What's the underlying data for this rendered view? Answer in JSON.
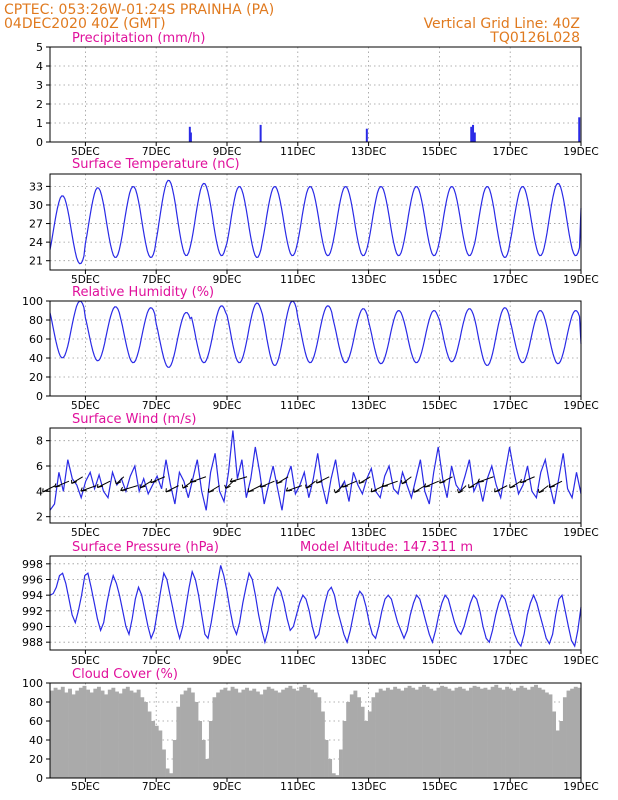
{
  "header": {
    "line1_left": "CPTEC:   053:26W-01:24S   PRAINHA (PA)",
    "line2_left": "04DEC2020 40Z (GMT)",
    "line1_right": "Vertical Grid Line: 40Z",
    "line2_right": "TQ0126L028"
  },
  "colors": {
    "title": "#e0119c",
    "header": "#e07a1f",
    "series": "#2a2ae6",
    "cloud": "#aaaaaa"
  },
  "x_ticks": [
    "5DEC",
    "7DEC",
    "9DEC",
    "11DEC",
    "13DEC",
    "15DEC",
    "17DEC",
    "19DEC"
  ],
  "chart_data": [
    {
      "type": "bar",
      "title": "Precipitation (mm/h)",
      "ylim": [
        0,
        5
      ],
      "yticks": [
        0,
        1,
        2,
        3,
        4,
        5
      ],
      "x_range_days": [
        4.0,
        19.0
      ],
      "points": [
        [
          7.95,
          0.8
        ],
        [
          7.98,
          0.5
        ],
        [
          9.95,
          0.9
        ],
        [
          12.95,
          0.7
        ],
        [
          15.9,
          0.8
        ],
        [
          15.95,
          0.9
        ],
        [
          16.0,
          0.5
        ],
        [
          18.95,
          1.3
        ]
      ]
    },
    {
      "type": "line",
      "title": "Surface Temperature (nC)",
      "ylim": [
        19.5,
        35
      ],
      "yticks": [
        21,
        24,
        27,
        30,
        33
      ],
      "x_range_days": [
        4.0,
        19.0
      ],
      "daily_min": [
        20.5,
        21.5,
        21.5,
        21.8,
        21.8,
        21.5,
        21.8,
        21.8,
        21.8,
        21.8,
        21.8,
        21.8,
        21.5,
        21.8,
        21.8
      ],
      "daily_max": [
        31.5,
        32.8,
        33.0,
        34.0,
        33.5,
        33.0,
        33.0,
        33.0,
        33.0,
        33.0,
        33.0,
        33.0,
        33.0,
        33.0,
        33.5
      ],
      "last": 29.5
    },
    {
      "type": "line",
      "title": "Relative Humidity (%)",
      "ylim": [
        0,
        100
      ],
      "yticks": [
        0,
        20,
        40,
        60,
        80,
        100
      ],
      "x_range_days": [
        4.0,
        19.0
      ],
      "daily_max": [
        100,
        94,
        93,
        88,
        95,
        98,
        100,
        95,
        92,
        90,
        90,
        92,
        93,
        90,
        90
      ],
      "daily_min": [
        40,
        37,
        35,
        30,
        35,
        35,
        32,
        35,
        35,
        34,
        35,
        36,
        32,
        35,
        34
      ],
      "last": 55
    },
    {
      "type": "line",
      "title": "Surface Wind (m/s)",
      "ylim": [
        1.5,
        9.0
      ],
      "yticks": [
        2,
        4,
        6,
        8
      ],
      "x_range_days": [
        4.0,
        19.0
      ],
      "values": [
        2.5,
        3.0,
        5.5,
        4.0,
        6.5,
        5.0,
        4.5,
        3.5,
        4.8,
        5.5,
        4.2,
        5.3,
        4.0,
        3.5,
        5.5,
        4.5,
        5.0,
        4.0,
        5.2,
        6.0,
        4.0,
        5.0,
        3.8,
        4.5,
        5.2,
        4.2,
        6.5,
        4.5,
        3.0,
        5.5,
        4.8,
        3.5,
        5.0,
        6.5,
        4.0,
        2.5,
        5.5,
        7.0,
        4.0,
        3.2,
        5.5,
        8.8,
        5.0,
        6.5,
        3.5,
        5.0,
        7.5,
        5.5,
        3.0,
        4.5,
        6.0,
        4.2,
        2.5,
        5.0,
        6.0,
        3.8,
        4.5,
        5.5,
        3.5,
        5.0,
        7.0,
        4.5,
        3.0,
        5.0,
        6.5,
        4.2,
        4.8,
        3.2,
        5.5,
        4.5,
        3.8,
        5.0,
        5.8,
        4.0,
        3.5,
        5.2,
        6.0,
        4.2,
        3.8,
        5.5,
        4.5,
        3.5,
        5.0,
        6.5,
        4.0,
        3.0,
        5.5,
        7.5,
        5.0,
        3.5,
        6.0,
        4.5,
        4.0,
        5.2,
        6.5,
        4.0,
        4.8,
        3.2,
        5.0,
        6.0,
        4.5,
        3.5,
        5.5,
        7.5,
        5.5,
        3.8,
        4.5,
        6.0,
        4.0,
        3.5,
        5.5,
        6.5,
        4.5,
        3.0,
        5.0,
        7.0,
        4.2,
        3.5,
        5.5,
        3.8
      ],
      "arrow_dirs_deg": [
        215,
        220,
        210,
        225,
        215,
        200,
        230,
        210,
        220,
        215,
        205,
        225,
        210,
        200,
        230,
        215,
        220,
        210,
        225,
        205,
        215,
        200,
        220,
        210,
        215,
        225,
        205,
        210,
        220,
        215,
        200,
        210,
        225,
        215,
        210,
        220,
        205,
        215
      ],
      "arrows_y": 4.8
    },
    {
      "type": "line",
      "title": "Surface Pressure (hPa)",
      "annotation": "Model Altitude: 147.311 m",
      "ylim": [
        987,
        999
      ],
      "yticks": [
        988,
        990,
        992,
        994,
        996,
        998
      ],
      "x_range_days": [
        4.0,
        19.0
      ],
      "values": [
        994,
        994.2,
        995,
        996.5,
        996.8,
        995.5,
        993.5,
        991.5,
        990.5,
        992,
        994,
        996.5,
        996.8,
        995,
        993,
        991,
        989.5,
        990.5,
        993,
        995,
        996.5,
        995.5,
        994,
        992,
        990,
        989,
        991,
        993.5,
        995,
        994,
        992,
        990,
        988.5,
        989.5,
        992,
        994.5,
        996.8,
        996,
        994,
        992,
        990,
        988.5,
        990,
        992.5,
        995,
        997,
        996,
        994,
        991.5,
        989,
        988.5,
        990.5,
        993,
        995.5,
        997.8,
        996.5,
        994.5,
        992,
        990,
        989,
        990.5,
        993,
        995,
        996.8,
        996,
        994,
        991.5,
        989.5,
        988,
        989.5,
        992,
        994,
        995,
        994.5,
        993,
        991,
        989.5,
        990,
        991.5,
        993,
        994,
        993.5,
        992,
        990,
        988.5,
        989,
        991,
        993,
        994.5,
        995,
        994,
        992,
        990.5,
        989,
        988,
        989.5,
        991.5,
        993.5,
        994.5,
        994,
        992.5,
        990.5,
        989,
        988.5,
        990,
        992,
        993.5,
        994,
        993.5,
        992,
        990.5,
        989.5,
        988.5,
        989.5,
        991.5,
        993,
        994,
        993.5,
        992,
        990.5,
        989,
        988,
        989.5,
        991.5,
        993,
        994,
        993.5,
        992,
        990.5,
        989.5,
        989,
        990,
        991.5,
        993,
        994,
        993.5,
        992,
        990,
        988.5,
        988,
        989.5,
        991.5,
        993,
        994,
        993.5,
        992,
        990.5,
        989,
        988,
        987.5,
        989,
        991.5,
        993,
        994,
        993,
        991.5,
        990,
        988.5,
        987.8,
        989,
        991.5,
        993.5,
        994,
        992,
        990,
        988.2,
        987.5,
        989.5,
        992.5
      ],
      "annotation_y": ""
    },
    {
      "type": "bar",
      "title": "Cloud Cover (%)",
      "ylim": [
        0,
        100
      ],
      "yticks": [
        0,
        20,
        40,
        60,
        80,
        100
      ],
      "x_range_days": [
        4.0,
        19.0
      ],
      "values": [
        92,
        95,
        93,
        96,
        90,
        94,
        88,
        92,
        95,
        97,
        93,
        90,
        94,
        96,
        92,
        88,
        93,
        95,
        91,
        89,
        94,
        96,
        92,
        90,
        93,
        85,
        80,
        70,
        60,
        55,
        50,
        30,
        10,
        5,
        40,
        75,
        88,
        92,
        95,
        90,
        80,
        60,
        40,
        20,
        60,
        85,
        90,
        93,
        95,
        92,
        96,
        94,
        90,
        93,
        95,
        92,
        94,
        91,
        88,
        93,
        96,
        94,
        92,
        90,
        93,
        95,
        97,
        94,
        92,
        96,
        98,
        95,
        93,
        90,
        85,
        70,
        40,
        20,
        5,
        3,
        30,
        60,
        80,
        88,
        92,
        85,
        75,
        60,
        70,
        85,
        90,
        94,
        92,
        95,
        93,
        96,
        94,
        92,
        95,
        97,
        95,
        93,
        96,
        98,
        96,
        94,
        92,
        95,
        97,
        96,
        94,
        92,
        95,
        96,
        94,
        92,
        95,
        97,
        96,
        94,
        95,
        93,
        96,
        98,
        95,
        93,
        96,
        94,
        92,
        95,
        97,
        95,
        93,
        96,
        98,
        95,
        93,
        90,
        88,
        70,
        50,
        60,
        85,
        92,
        94,
        96,
        95
      ]
    }
  ]
}
